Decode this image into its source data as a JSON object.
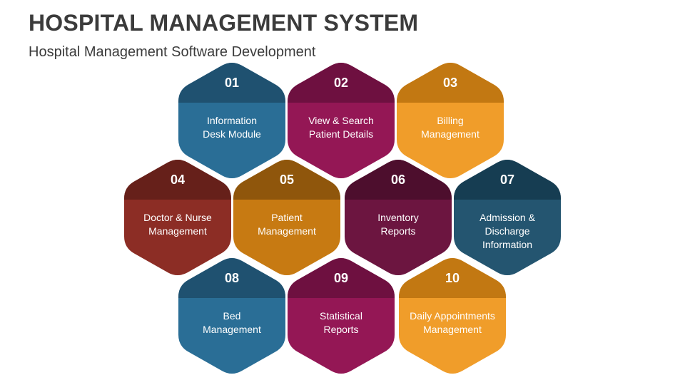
{
  "header": {
    "title": "HOSPITAL MANAGEMENT SYSTEM",
    "subtitle": "Hospital Management Software Development"
  },
  "colors": {
    "blue": "#2a6e96",
    "blue_dark": "#1f5170",
    "magenta": "#941755",
    "magenta_dark": "#6e1040",
    "orange": "#f09d2a",
    "orange_dark": "#c27812",
    "rust": "#8c2d25",
    "rust_dark": "#66201a",
    "amber": "#c77a12",
    "amber_dark": "#8f560c",
    "plum": "#6c1540",
    "plum_dark": "#4d0e2d",
    "navy": "#245570",
    "navy_dark": "#163d52"
  },
  "modules": [
    {
      "number": "01",
      "label": "Information\nDesk Module"
    },
    {
      "number": "02",
      "label": "View & Search\nPatient Details"
    },
    {
      "number": "03",
      "label": "Billing\nManagement"
    },
    {
      "number": "04",
      "label": "Doctor & Nurse\nManagement"
    },
    {
      "number": "05",
      "label": "Patient\nManagement"
    },
    {
      "number": "06",
      "label": "Inventory\nReports"
    },
    {
      "number": "07",
      "label": "Admission &\nDischarge\nInformation"
    },
    {
      "number": "08",
      "label": "Bed\nManagement"
    },
    {
      "number": "09",
      "label": "Statistical\nReports"
    },
    {
      "number": "10",
      "label": "Daily Appointments\nManagement"
    }
  ]
}
